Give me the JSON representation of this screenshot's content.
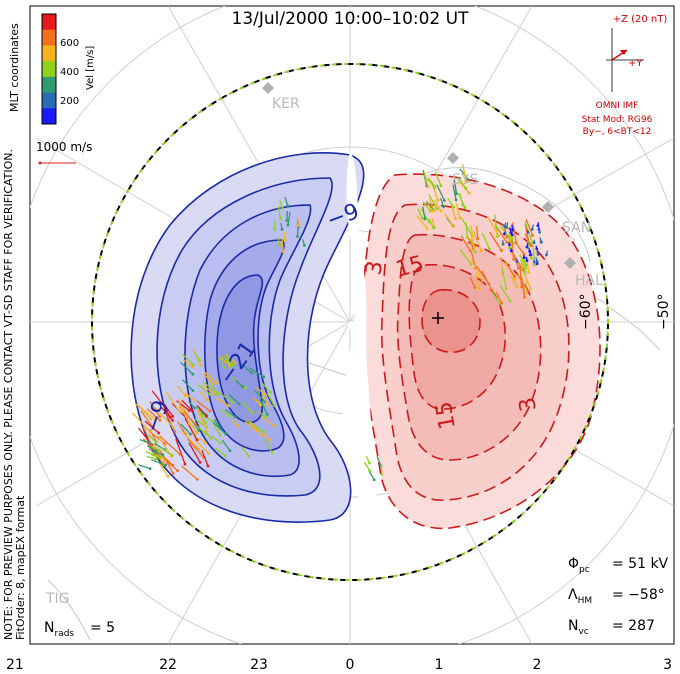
{
  "title": "13/Jul/2000 10:00–10:02 UT",
  "coordinates_label": "MLT coordinates",
  "velocity_scale": {
    "axis_label": "Vel [m/s]",
    "ticks": [
      "600",
      "400",
      "200"
    ],
    "colors": [
      "#e41a1c",
      "#f4701c",
      "#f7b31c",
      "#8fd21c",
      "#2f9b6f",
      "#2b6bb3",
      "#1a1aff"
    ]
  },
  "reference_vector": "1000 m/s",
  "imf": {
    "scale_label": "+Z (20 nT)",
    "y_label": "+Y",
    "source": "OMNI IMF",
    "model": "Stat Mod: RG96",
    "condition": "By−, 6<BT<12",
    "color": "#d00000"
  },
  "stations": [
    "KER",
    "SYS",
    "SAN",
    "HAL",
    "TIG"
  ],
  "latitude_labels": [
    "−60°",
    "−50°"
  ],
  "contour_labels": {
    "negative": [
      "−9",
      "−21",
      "−9"
    ],
    "positive": [
      "3",
      "15",
      "15",
      "3"
    ]
  },
  "mlt_axis": [
    "21",
    "22",
    "23",
    "0",
    "1",
    "2",
    "3"
  ],
  "notes": {
    "line1": "NOTE: FOR PREVIEW PURPOSES ONLY. PLEASE CONTACT VT-SD STAFF FOR VERIFICATION.",
    "line2": "FitOrder: 8, mapEX format"
  },
  "stats": {
    "phi_pc": "= 51 kV",
    "lambda_hm": "= −58°",
    "n_vc": "= 287",
    "n_rads": "= 5"
  },
  "colors": {
    "negative_fill": "#c7c9f0",
    "positive_fill": "#f6c6c3",
    "negative_line": "#1a2aa8",
    "positive_line": "#cc1a1a"
  }
}
